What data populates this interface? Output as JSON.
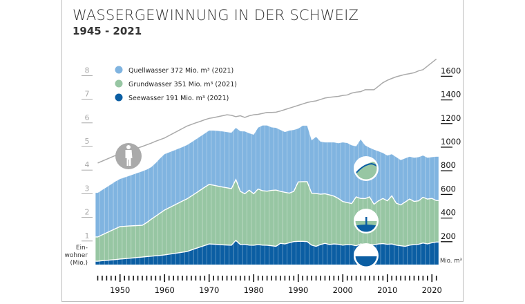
{
  "title": "WASSERGEWINNUNG IN DER SCHWEIZ",
  "subtitle": "1945 - 2021",
  "legend": [
    {
      "label": "Quellwasser 372 Mio. m³ (2021)",
      "color": "#80b4e0"
    },
    {
      "label": "Grundwasser 351 Mio. m³ (2021)",
      "color": "#97c6a3"
    },
    {
      "label": "Seewasser 191 Mio. m³ (2021)",
      "color": "#0b5ea3"
    }
  ],
  "left_axis": {
    "label_lines": [
      "Ein-",
      "wohner",
      "(Mio.)"
    ],
    "ticks": [
      "1",
      "2",
      "3",
      "4",
      "5",
      "6",
      "7",
      "8"
    ]
  },
  "right_axis": {
    "unit": "Mio. m³",
    "ticks": [
      "200",
      "400",
      "600",
      "800",
      "1000",
      "1200",
      "1400",
      "1600"
    ]
  },
  "icons": [
    "person-icon",
    "spring-icon",
    "groundwater-well-icon",
    "lake-icon"
  ],
  "chart_data": {
    "type": "area",
    "stacked": true,
    "x_label_ticks": [
      "1950",
      "1960",
      "1970",
      "1980",
      "1990",
      "2000",
      "2010",
      "2020"
    ],
    "xlim": [
      1945,
      2021
    ],
    "ylim": [
      0,
      1700
    ],
    "y2lim": [
      0,
      8.5
    ],
    "years": [
      1945,
      1946,
      1947,
      1948,
      1949,
      1950,
      1951,
      1952,
      1953,
      1954,
      1955,
      1956,
      1957,
      1958,
      1959,
      1960,
      1961,
      1962,
      1963,
      1964,
      1965,
      1966,
      1967,
      1968,
      1969,
      1970,
      1971,
      1972,
      1973,
      1974,
      1975,
      1976,
      1977,
      1978,
      1979,
      1980,
      1981,
      1982,
      1983,
      1984,
      1985,
      1986,
      1987,
      1988,
      1989,
      1990,
      1991,
      1992,
      1993,
      1994,
      1995,
      1996,
      1997,
      1998,
      1999,
      2000,
      2001,
      2002,
      2003,
      2004,
      2005,
      2006,
      2007,
      2008,
      2009,
      2010,
      2011,
      2012,
      2013,
      2014,
      2015,
      2016,
      2017,
      2018,
      2019,
      2020,
      2021
    ],
    "series": [
      {
        "name": "Seewasser",
        "unit": "Mio. m³",
        "color": "#0b5ea3",
        "values": [
          29,
          33,
          36,
          40,
          43,
          47,
          50,
          54,
          57,
          61,
          64,
          68,
          71,
          75,
          78,
          82,
          88,
          94,
          99,
          105,
          111,
          124,
          137,
          149,
          162,
          175,
          173,
          171,
          168,
          166,
          164,
          205,
          170,
          172,
          165,
          164,
          170,
          165,
          164,
          160,
          155,
          180,
          175,
          185,
          195,
          197,
          197,
          195,
          165,
          155,
          170,
          180,
          170,
          175,
          172,
          165,
          170,
          168,
          160,
          175,
          170,
          172,
          168,
          175,
          178,
          172,
          175,
          165,
          160,
          155,
          165,
          170,
          172,
          183,
          175,
          185,
          191
        ]
      },
      {
        "name": "Grundwasser",
        "unit": "Mio. m³",
        "color": "#97c6a3",
        "values": [
          205,
          219,
          234,
          247,
          262,
          275,
          274,
          273,
          272,
          270,
          269,
          288,
          313,
          335,
          358,
          380,
          393,
          406,
          420,
          433,
          445,
          456,
          468,
          481,
          493,
          504,
          499,
          493,
          489,
          484,
          479,
          515,
          450,
          428,
          465,
          436,
          470,
          460,
          458,
          468,
          476,
          440,
          437,
          420,
          425,
          503,
          505,
          507,
          440,
          447,
          426,
          420,
          420,
          405,
          388,
          369,
          355,
          349,
          413,
          385,
          389,
          401,
          343,
          365,
          382,
          368,
          407,
          355,
          345,
          375,
          390,
          365,
          368,
          387,
          380,
          375,
          351
        ]
      },
      {
        "name": "Quellwasser",
        "unit": "Mio. m³",
        "color": "#80b4e0",
        "values": [
          374,
          380,
          386,
          393,
          400,
          403,
          414,
          424,
          435,
          446,
          457,
          449,
          441,
          450,
          464,
          474,
          469,
          465,
          461,
          457,
          456,
          455,
          455,
          455,
          455,
          456,
          463,
          468,
          471,
          472,
          474,
          438,
          510,
          528,
          482,
          500,
          520,
          553,
          556,
          534,
          527,
          520,
          511,
          530,
          520,
          452,
          474,
          474,
          448,
          480,
          445,
          435,
          445,
          455,
          468,
          501,
          505,
          493,
          429,
          500,
          451,
          417,
          462,
          420,
          385,
          384,
          353,
          390,
          380,
          370,
          359,
          370,
          370,
          354,
          350,
          350,
          372
        ]
      }
    ],
    "population": {
      "unit": "Mio.",
      "color": "#aaaaaa",
      "values": [
        4.3,
        4.38,
        4.46,
        4.54,
        4.62,
        4.7,
        4.76,
        4.82,
        4.88,
        4.94,
        5.0,
        5.07,
        5.14,
        5.22,
        5.29,
        5.36,
        5.46,
        5.56,
        5.66,
        5.76,
        5.86,
        5.93,
        6.0,
        6.06,
        6.13,
        6.19,
        6.22,
        6.26,
        6.3,
        6.34,
        6.32,
        6.26,
        6.3,
        6.23,
        6.3,
        6.34,
        6.36,
        6.4,
        6.44,
        6.44,
        6.45,
        6.5,
        6.56,
        6.62,
        6.68,
        6.74,
        6.8,
        6.86,
        6.9,
        6.93,
        6.99,
        7.05,
        7.08,
        7.1,
        7.12,
        7.16,
        7.18,
        7.26,
        7.3,
        7.32,
        7.4,
        7.4,
        7.4,
        7.55,
        7.7,
        7.8,
        7.88,
        7.95,
        8.0,
        8.05,
        8.08,
        8.12,
        8.2,
        8.25,
        8.4,
        8.55,
        8.7
      ]
    }
  }
}
